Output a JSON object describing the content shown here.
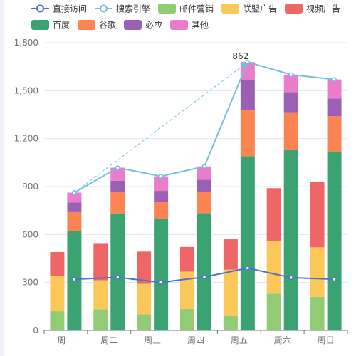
{
  "chart_data": {
    "type": "bar",
    "title": "",
    "xlabel": "",
    "ylabel": "",
    "categories": [
      "周一",
      "周二",
      "周三",
      "周四",
      "周五",
      "周六",
      "周日"
    ],
    "ylim": [
      0,
      1800
    ],
    "yticks": [
      "0",
      "300",
      "600",
      "900",
      "1,200",
      "1,500",
      "1,800"
    ],
    "grid": true,
    "legend_position": "top",
    "line_series": [
      {
        "name": "直接访问",
        "color": "#5470c6",
        "values": [
          320,
          332,
          301,
          334,
          390,
          330,
          320
        ]
      },
      {
        "name": "搜索引擎",
        "color": "#73c0de",
        "values": [
          862,
          1018,
          964,
          1026,
          1679,
          1600,
          1570
        ]
      }
    ],
    "bar_group_a": [
      {
        "name": "邮件营销",
        "color": "#91cc75",
        "values": [
          120,
          132,
          101,
          134,
          90,
          230,
          210
        ]
      },
      {
        "name": "联盟广告",
        "color": "#fac858",
        "values": [
          220,
          182,
          191,
          234,
          290,
          330,
          310
        ]
      },
      {
        "name": "视频广告",
        "color": "#ee6666",
        "values": [
          150,
          232,
          201,
          154,
          190,
          330,
          410
        ]
      }
    ],
    "bar_group_b": [
      {
        "name": "百度",
        "color": "#3ba272",
        "values": [
          620,
          732,
          701,
          734,
          1090,
          1130,
          1120
        ]
      },
      {
        "name": "谷歌",
        "color": "#fc8452",
        "values": [
          120,
          132,
          101,
          134,
          290,
          230,
          220
        ]
      },
      {
        "name": "必应",
        "color": "#9a60b4",
        "values": [
          60,
          72,
          71,
          74,
          190,
          130,
          110
        ]
      },
      {
        "name": "其他",
        "color": "#ea7ccc",
        "values": [
          62,
          82,
          91,
          84,
          109,
          110,
          120
        ]
      }
    ],
    "legend": [
      {
        "name": "直接访问",
        "kind": "line",
        "color": "#5470c6"
      },
      {
        "name": "搜索引擎",
        "kind": "line",
        "color": "#73c0de"
      },
      {
        "name": "邮件营销",
        "kind": "box",
        "color": "#91cc75"
      },
      {
        "name": "联盟广告",
        "kind": "box",
        "color": "#fac858"
      },
      {
        "name": "视频广告",
        "kind": "box",
        "color": "#ee6666"
      },
      {
        "name": "百度",
        "kind": "box",
        "color": "#3ba272"
      },
      {
        "name": "谷歌",
        "kind": "box",
        "color": "#fc8452"
      },
      {
        "name": "必应",
        "kind": "box",
        "color": "#9a60b4"
      },
      {
        "name": "其他",
        "kind": "box",
        "color": "#ea7ccc"
      }
    ],
    "markline": {
      "from_category": "周一",
      "to_category": "周五",
      "from_value": 862,
      "to_value": 1679,
      "label": "862",
      "color": "#73c0de"
    },
    "axis_color": "#6e7079",
    "grid_color": "#e0e6f1"
  }
}
